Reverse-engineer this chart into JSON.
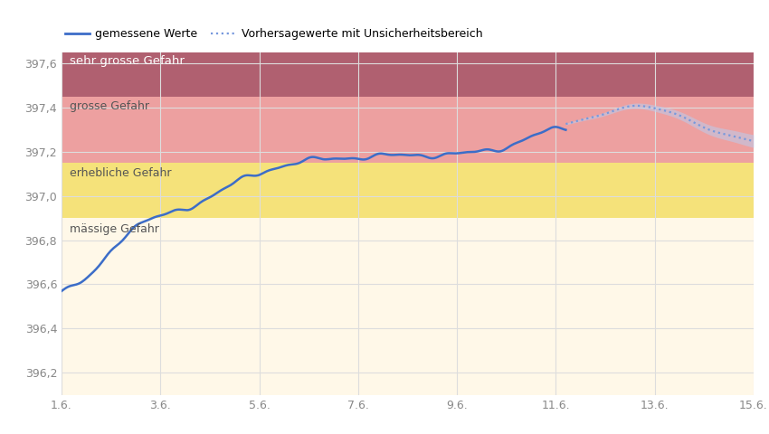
{
  "legend_measured": "gemessene Werte",
  "legend_forecast": "Vorhersagewerte mit Unsicherheitsbereich",
  "ylim": [
    396.1,
    397.65
  ],
  "yticks": [
    396.2,
    396.4,
    396.6,
    396.8,
    397.0,
    397.2,
    397.4,
    397.6
  ],
  "xtick_labels": [
    "1.6.",
    "3.6.",
    "5.6.",
    "7.6.",
    "9.6.",
    "11.6.",
    "13.6.",
    "15.6."
  ],
  "xtick_positions": [
    0,
    2,
    4,
    6,
    8,
    10,
    12,
    14
  ],
  "xlim": [
    0,
    14
  ],
  "danger_zones": {
    "massige": {
      "ymin": 396.1,
      "ymax": 396.9,
      "color": "#FFF8E8",
      "label": "mässige Gefahr"
    },
    "erhebliche": {
      "ymin": 396.9,
      "ymax": 397.15,
      "color": "#F5E27A",
      "label": "erhebliche Gefahr"
    },
    "grosse": {
      "ymin": 397.15,
      "ymax": 397.45,
      "color": "#EDA0A0",
      "label": "grosse Gefahr"
    },
    "sehr_grosse": {
      "ymin": 397.45,
      "ymax": 397.65,
      "color": "#B06070",
      "label": "sehr grosse Gefahr"
    }
  },
  "zone_label_color_dark": "#555555",
  "zone_label_color_light": "#ffffff",
  "line_color": "#3C6DC8",
  "forecast_color": "#7799DD",
  "forecast_fill_color": "#BBCCEE",
  "background_color": "#ffffff",
  "grid_color": "#dddddd",
  "tick_color": "#888888",
  "measured_end_day": 10.2,
  "forecast_start_day": 10.2,
  "forecast_end_day": 14.0
}
